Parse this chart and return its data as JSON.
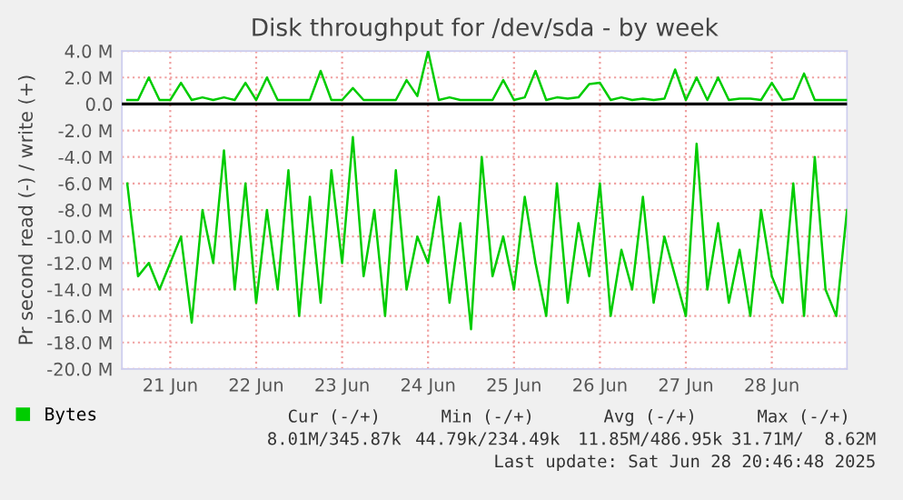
{
  "chart_data": {
    "type": "line",
    "title": "Disk throughput for /dev/sda - by week",
    "ylabel": "Pr second read (-) / write (+)",
    "x": [
      "2025-06-20T12:00",
      "2025-06-20T15:00",
      "2025-06-20T18:00",
      "2025-06-20T21:00",
      "2025-06-21T00:00",
      "2025-06-21T03:00",
      "2025-06-21T06:00",
      "2025-06-21T09:00",
      "2025-06-21T12:00",
      "2025-06-21T15:00",
      "2025-06-21T18:00",
      "2025-06-21T21:00",
      "2025-06-22T00:00",
      "2025-06-22T03:00",
      "2025-06-22T06:00",
      "2025-06-22T09:00",
      "2025-06-22T12:00",
      "2025-06-22T15:00",
      "2025-06-22T18:00",
      "2025-06-22T21:00",
      "2025-06-23T00:00",
      "2025-06-23T03:00",
      "2025-06-23T06:00",
      "2025-06-23T09:00",
      "2025-06-23T12:00",
      "2025-06-23T15:00",
      "2025-06-23T18:00",
      "2025-06-23T21:00",
      "2025-06-24T00:00",
      "2025-06-24T03:00",
      "2025-06-24T06:00",
      "2025-06-24T09:00",
      "2025-06-24T12:00",
      "2025-06-24T15:00",
      "2025-06-24T18:00",
      "2025-06-24T21:00",
      "2025-06-25T00:00",
      "2025-06-25T03:00",
      "2025-06-25T06:00",
      "2025-06-25T09:00",
      "2025-06-25T12:00",
      "2025-06-25T15:00",
      "2025-06-25T18:00",
      "2025-06-25T21:00",
      "2025-06-26T00:00",
      "2025-06-26T03:00",
      "2025-06-26T06:00",
      "2025-06-26T09:00",
      "2025-06-26T12:00",
      "2025-06-26T15:00",
      "2025-06-26T18:00",
      "2025-06-26T21:00",
      "2025-06-27T00:00",
      "2025-06-27T03:00",
      "2025-06-27T06:00",
      "2025-06-27T09:00",
      "2025-06-27T12:00",
      "2025-06-27T15:00",
      "2025-06-27T18:00",
      "2025-06-27T21:00",
      "2025-06-28T00:00",
      "2025-06-28T03:00",
      "2025-06-28T06:00",
      "2025-06-28T09:00",
      "2025-06-28T12:00",
      "2025-06-28T15:00",
      "2025-06-28T18:00",
      "2025-06-28T21:00"
    ],
    "series": [
      {
        "name": "Bytes",
        "color": "#00cc00",
        "values": [
          0.3,
          0.3,
          2.0,
          0.3,
          0.3,
          1.6,
          0.3,
          0.5,
          0.3,
          0.5,
          0.3,
          1.6,
          0.3,
          2.0,
          0.3,
          0.3,
          0.3,
          0.3,
          2.5,
          0.3,
          0.3,
          1.2,
          0.3,
          0.3,
          0.3,
          0.3,
          1.8,
          0.6,
          4.0,
          0.3,
          0.5,
          0.3,
          0.3,
          0.3,
          0.3,
          1.8,
          0.3,
          0.5,
          2.5,
          0.3,
          0.5,
          0.4,
          0.5,
          1.5,
          1.6,
          0.3,
          0.5,
          0.3,
          0.4,
          0.3,
          0.4,
          2.6,
          0.3,
          2.0,
          0.3,
          2.0,
          0.3,
          0.4,
          0.4,
          0.3,
          1.6,
          0.3,
          0.4,
          2.3,
          0.3,
          0.3,
          0.3,
          0.3
        ]
      },
      {
        "color": "#00cc00",
        "values": [
          -6,
          -13,
          -12,
          -14,
          -12,
          -10,
          -16.5,
          -8,
          -12,
          -3.5,
          -14,
          -6,
          -15,
          -8,
          -14,
          -5,
          -16,
          -7,
          -15,
          -5,
          -12,
          -2.5,
          -13,
          -8,
          -16,
          -5,
          -14,
          -10,
          -12,
          -7,
          -15,
          -9,
          -17,
          -4,
          -13,
          -10,
          -14,
          -7,
          -12,
          -16,
          -6,
          -15,
          -9,
          -13,
          -6,
          -16,
          -11,
          -14,
          -7,
          -15,
          -10,
          -13,
          -16,
          -3,
          -14,
          -9,
          -15,
          -11,
          -16,
          -8,
          -13,
          -15,
          -6,
          -16,
          -4,
          -14,
          -16,
          -8
        ]
      }
    ],
    "xlim": [
      "2025-06-20T10:30",
      "2025-06-28T21:00"
    ],
    "xticks": [
      {
        "value": "2025-06-21",
        "label": "21 Jun"
      },
      {
        "value": "2025-06-22",
        "label": "22 Jun"
      },
      {
        "value": "2025-06-23",
        "label": "23 Jun"
      },
      {
        "value": "2025-06-24",
        "label": "24 Jun"
      },
      {
        "value": "2025-06-25",
        "label": "25 Jun"
      },
      {
        "value": "2025-06-26",
        "label": "26 Jun"
      },
      {
        "value": "2025-06-27",
        "label": "27 Jun"
      },
      {
        "value": "2025-06-28",
        "label": "28 Jun"
      }
    ],
    "ylim": [
      -20,
      4
    ],
    "yticks": [
      {
        "value": 4,
        "label": "4.0 M"
      },
      {
        "value": 2,
        "label": "2.0 M"
      },
      {
        "value": 0,
        "label": "0.0"
      },
      {
        "value": -2,
        "label": "-2.0 M"
      },
      {
        "value": -4,
        "label": "-4.0 M"
      },
      {
        "value": -6,
        "label": "-6.0 M"
      },
      {
        "value": -8,
        "label": "-8.0 M"
      },
      {
        "value": -10,
        "label": "-10.0 M"
      },
      {
        "value": -12,
        "label": "-12.0 M"
      },
      {
        "value": -14,
        "label": "-14.0 M"
      },
      {
        "value": -16,
        "label": "-16.0 M"
      },
      {
        "value": -18,
        "label": "-18.0 M"
      },
      {
        "value": -20,
        "label": "-20.0 M"
      }
    ],
    "ref_lines": [
      {
        "axis": "y",
        "value": 0,
        "color": "#000000"
      }
    ],
    "grid": true,
    "legend": "bottom left",
    "annotations": [
      "Cur (-/+)",
      "Min (-/+)",
      "Avg (-/+)",
      "Max (-/+)",
      "8.01M/345.87k",
      "44.79k/234.49k",
      "11.85M/486.95k",
      "31.71M/  8.62M",
      "Last update: Sat Jun 28 20:46:48 2025"
    ]
  }
}
